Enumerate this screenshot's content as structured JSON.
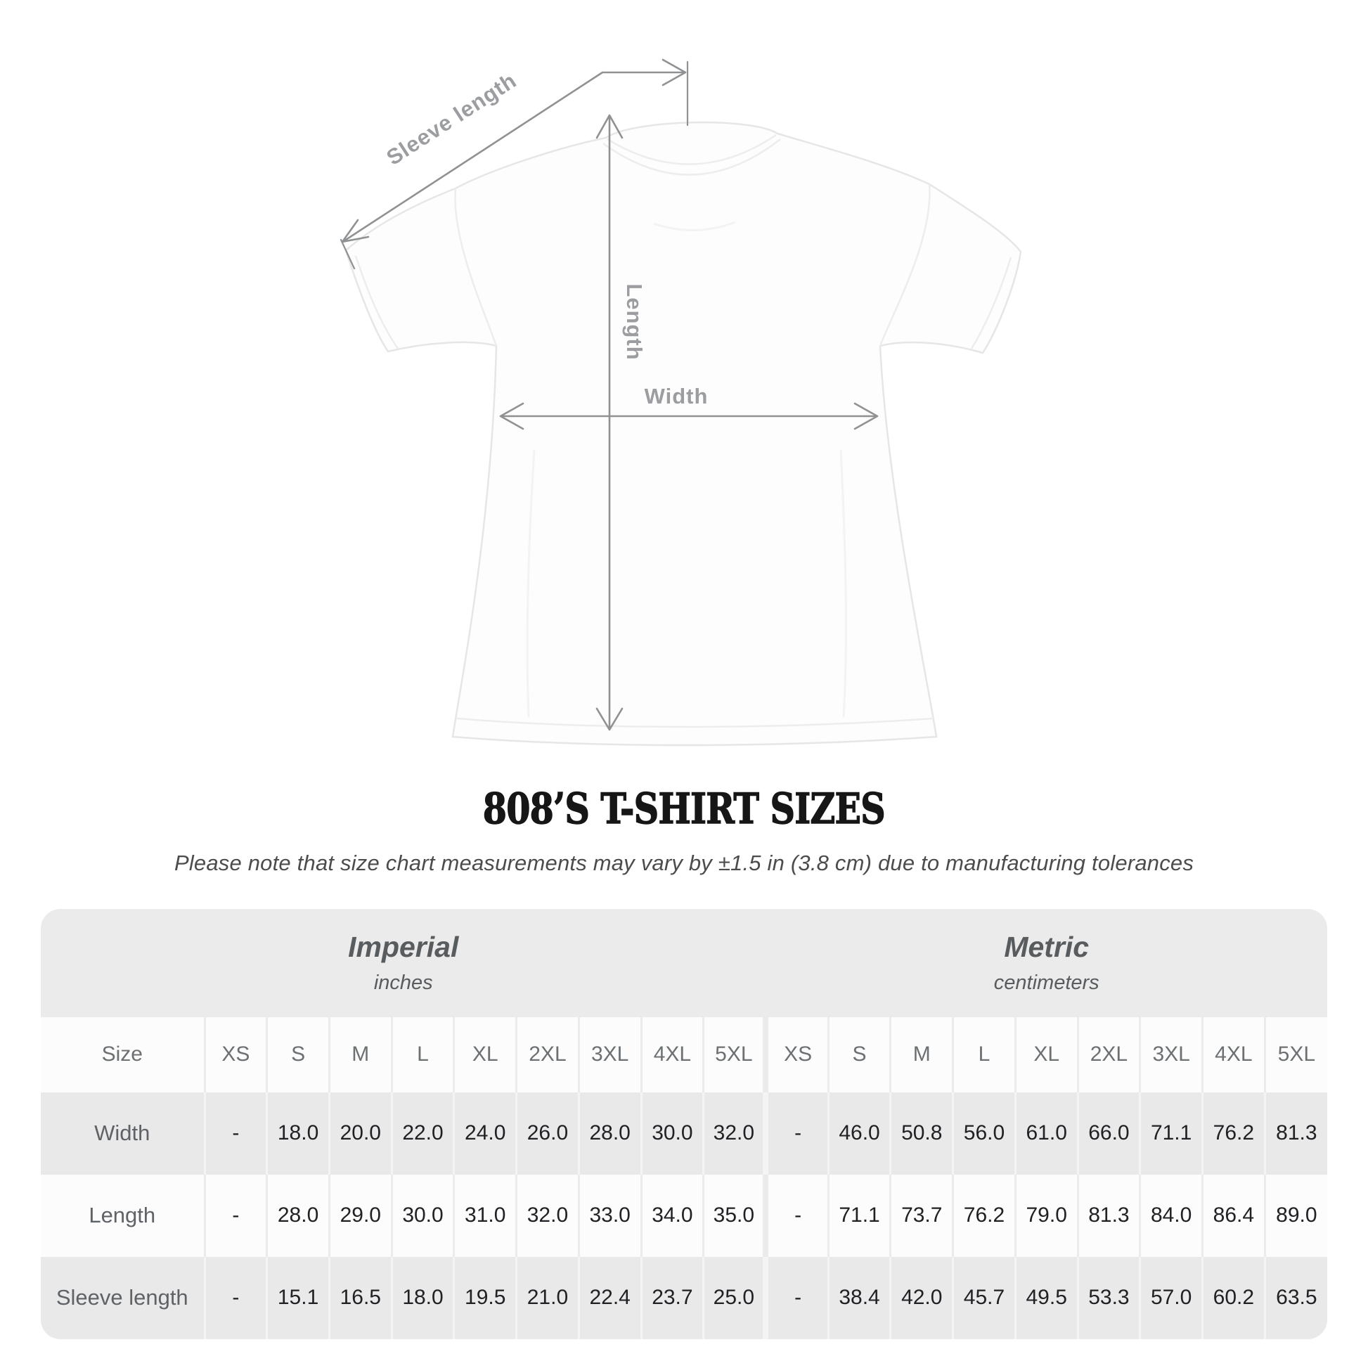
{
  "diagram": {
    "labels": {
      "sleeve_length": "Sleeve length",
      "length": "Length",
      "width": "Width"
    }
  },
  "title": "808’S T-SHIRT SIZES",
  "subtitle": "Please note that size chart measurements may vary by ±1.5 in (3.8 cm) due to manufacturing tolerances",
  "size_table": {
    "size_column_header": "Size",
    "unit_sections": [
      {
        "name": "Imperial",
        "unit": "inches"
      },
      {
        "name": "Metric",
        "unit": "centimeters"
      }
    ],
    "sizes": [
      "XS",
      "S",
      "M",
      "L",
      "XL",
      "2XL",
      "3XL",
      "4XL",
      "5XL"
    ],
    "rows": [
      {
        "label": "Width",
        "imperial": [
          "-",
          "18.0",
          "20.0",
          "22.0",
          "24.0",
          "26.0",
          "28.0",
          "30.0",
          "32.0"
        ],
        "metric": [
          "-",
          "46.0",
          "50.8",
          "56.0",
          "61.0",
          "66.0",
          "71.1",
          "76.2",
          "81.3"
        ]
      },
      {
        "label": "Length",
        "imperial": [
          "-",
          "28.0",
          "29.0",
          "30.0",
          "31.0",
          "32.0",
          "33.0",
          "34.0",
          "35.0"
        ],
        "metric": [
          "-",
          "71.1",
          "73.7",
          "76.2",
          "79.0",
          "81.3",
          "84.0",
          "86.4",
          "89.0"
        ]
      },
      {
        "label": "Sleeve length",
        "imperial": [
          "-",
          "15.1",
          "16.5",
          "18.0",
          "19.5",
          "21.0",
          "22.4",
          "23.7",
          "25.0"
        ],
        "metric": [
          "-",
          "38.4",
          "42.0",
          "45.7",
          "49.5",
          "53.3",
          "57.0",
          "60.2",
          "63.5"
        ]
      }
    ]
  },
  "colors": {
    "page_background": "#ffffff",
    "table_background": "#ebebeb",
    "row_gray": "#e9e9e9",
    "row_white": "#fcfcfc",
    "measure_line": "#8f9193",
    "measure_label": "#9b9da0",
    "header_text": "#6d7072",
    "value_text": "#202124",
    "title_text": "#161616"
  },
  "chart_data": {
    "type": "table",
    "title": "808’S T-SHIRT SIZES",
    "note": "Please note that size chart measurements may vary by ±1.5 in (3.8 cm) due to manufacturing tolerances",
    "column_groups": [
      "Imperial (inches)",
      "Metric (centimeters)"
    ],
    "columns": [
      "XS",
      "S",
      "M",
      "L",
      "XL",
      "2XL",
      "3XL",
      "4XL",
      "5XL"
    ],
    "rows": [
      {
        "measurement": "Width",
        "imperial_inches": [
          null,
          18.0,
          20.0,
          22.0,
          24.0,
          26.0,
          28.0,
          30.0,
          32.0
        ],
        "metric_centimeters": [
          null,
          46.0,
          50.8,
          56.0,
          61.0,
          66.0,
          71.1,
          76.2,
          81.3
        ]
      },
      {
        "measurement": "Length",
        "imperial_inches": [
          null,
          28.0,
          29.0,
          30.0,
          31.0,
          32.0,
          33.0,
          34.0,
          35.0
        ],
        "metric_centimeters": [
          null,
          71.1,
          73.7,
          76.2,
          79.0,
          81.3,
          84.0,
          86.4,
          89.0
        ]
      },
      {
        "measurement": "Sleeve length",
        "imperial_inches": [
          null,
          15.1,
          16.5,
          18.0,
          19.5,
          21.0,
          22.4,
          23.7,
          25.0
        ],
        "metric_centimeters": [
          null,
          38.4,
          42.0,
          45.7,
          49.5,
          53.3,
          57.0,
          60.2,
          63.5
        ]
      }
    ]
  }
}
